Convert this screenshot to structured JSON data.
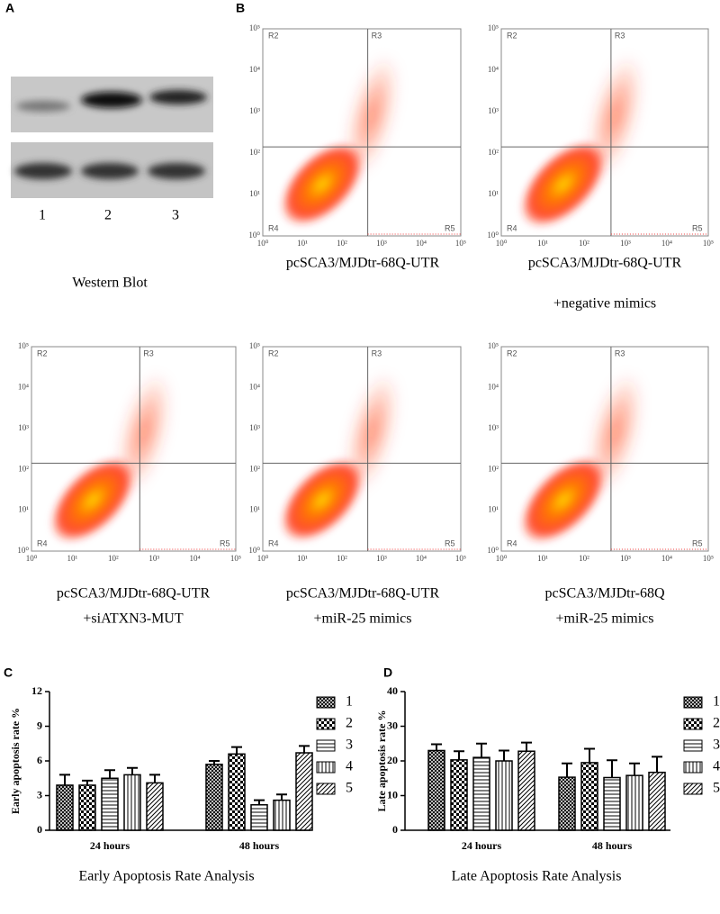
{
  "panel_labels": [
    "A",
    "B",
    "C",
    "D"
  ],
  "western_blot": {
    "lanes": [
      "1",
      "2",
      "3"
    ],
    "caption": "Western Blot"
  },
  "flow_axis_ticks": [
    "10⁰",
    "10¹",
    "10²",
    "10³",
    "10⁴",
    "10⁵"
  ],
  "flow_quadrants": [
    "R2",
    "R3",
    "R4",
    "R5"
  ],
  "flow_plots": [
    {
      "caption_lines": [
        "pcSCA3/MJDtr-68Q-UTR"
      ]
    },
    {
      "caption_lines": [
        "pcSCA3/MJDtr-68Q-UTR",
        "+negative mimics"
      ]
    },
    {
      "caption_lines": [
        "pcSCA3/MJDtr-68Q-UTR",
        "+siATXN3-MUT"
      ]
    },
    {
      "caption_lines": [
        "pcSCA3/MJDtr-68Q-UTR",
        "+miR-25 mimics"
      ]
    },
    {
      "caption_lines": [
        "pcSCA3/MJDtr-68Q",
        "+miR-25 mimics"
      ]
    }
  ],
  "chart_data": [
    {
      "type": "bar",
      "title": "Early Apoptosis Rate Analysis",
      "y_label": "Early apoptosis rate %",
      "categories": [
        "24 hours",
        "48 hours"
      ],
      "ylim": [
        0,
        12
      ],
      "yticks": [
        0,
        3,
        6,
        9,
        12
      ],
      "series": [
        {
          "name": "1",
          "pattern": "crosshatch",
          "values": [
            3.9,
            5.7
          ],
          "errors": [
            0.9,
            0.3
          ]
        },
        {
          "name": "2",
          "pattern": "checker",
          "values": [
            3.9,
            6.6
          ],
          "errors": [
            0.4,
            0.6
          ]
        },
        {
          "name": "3",
          "pattern": "horizontal",
          "values": [
            4.5,
            2.2
          ],
          "errors": [
            0.7,
            0.4
          ]
        },
        {
          "name": "4",
          "pattern": "vertical",
          "values": [
            4.8,
            2.6
          ],
          "errors": [
            0.6,
            0.5
          ]
        },
        {
          "name": "5",
          "pattern": "diagonal",
          "values": [
            4.1,
            6.7
          ],
          "errors": [
            0.7,
            0.6
          ]
        }
      ]
    },
    {
      "type": "bar",
      "title": "Late Apoptosis Rate Analysis",
      "y_label": "Late apoptosis rate %",
      "categories": [
        "24 hours",
        "48 hours"
      ],
      "ylim": [
        0,
        40
      ],
      "yticks": [
        0,
        10,
        20,
        30,
        40
      ],
      "series": [
        {
          "name": "1",
          "pattern": "crosshatch",
          "values": [
            23,
            15.3
          ],
          "errors": [
            1.8,
            4
          ]
        },
        {
          "name": "2",
          "pattern": "checker",
          "values": [
            20.3,
            19.5
          ],
          "errors": [
            2.5,
            4
          ]
        },
        {
          "name": "3",
          "pattern": "horizontal",
          "values": [
            21,
            15.2
          ],
          "errors": [
            4,
            5
          ]
        },
        {
          "name": "4",
          "pattern": "vertical",
          "values": [
            20,
            15.8
          ],
          "errors": [
            3,
            3.5
          ]
        },
        {
          "name": "5",
          "pattern": "diagonal",
          "values": [
            22.8,
            16.7
          ],
          "errors": [
            2.5,
            4.5
          ]
        }
      ]
    }
  ]
}
